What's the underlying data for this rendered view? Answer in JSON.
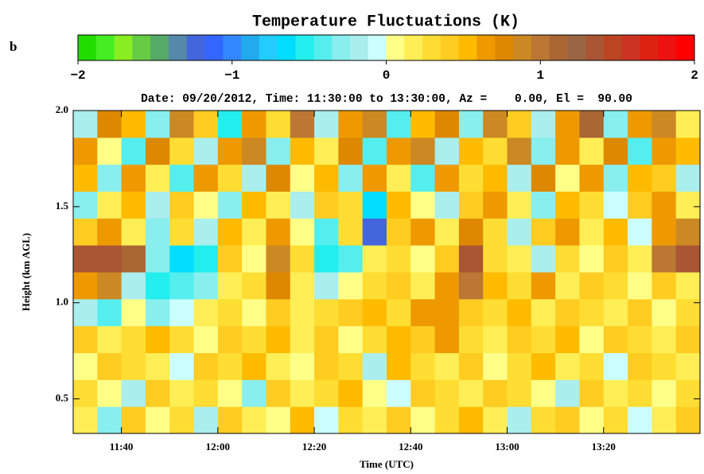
{
  "chart_data": {
    "type": "heatmap",
    "panel_label": "b",
    "title": "Temperature Fluctuations (K)",
    "subtitle": "Date: 09/20/2012, Time: 11:30:00 to 13:30:00, Az =    0.00, El =  90.00",
    "x_label": "Time (UTC)",
    "y_label": "Height (km AGL)",
    "xlim": [
      690,
      820
    ],
    "xticks": [
      {
        "value": 700,
        "label": "11:40"
      },
      {
        "value": 720,
        "label": "12:00"
      },
      {
        "value": 740,
        "label": "12:20"
      },
      {
        "value": 760,
        "label": "12:40"
      },
      {
        "value": 780,
        "label": "13:00"
      },
      {
        "value": 800,
        "label": "13:20"
      }
    ],
    "ylim": [
      0.32,
      2.0
    ],
    "yticks": [
      0.5,
      {
        "value": 1,
        "label": "1.0"
      },
      1.5,
      {
        "value": 2,
        "label": "2.0"
      }
    ],
    "zlim": [
      -2,
      2
    ],
    "zticks": [
      {
        "value": -2,
        "label": "−2"
      },
      {
        "value": -1,
        "label": "−1"
      },
      0,
      1,
      2
    ],
    "colorscale": [
      "#22dd00",
      "#44ee22",
      "#88ee22",
      "#66cc44",
      "#55aa66",
      "#5588aa",
      "#4466dd",
      "#3366ff",
      "#3388ff",
      "#22aaee",
      "#22ccff",
      "#00ddff",
      "#22eeee",
      "#55eeee",
      "#88eeee",
      "#aaeeee",
      "#ccffff",
      "#ffff88",
      "#ffee55",
      "#ffdd33",
      "#ffcc22",
      "#ffbb00",
      "#ee9900",
      "#dd8800",
      "#cc8822",
      "#bb7733",
      "#aa6633",
      "#996644",
      "#aa5533",
      "#bb4422",
      "#cc3322",
      "#dd2211",
      "#ee1111",
      "#ff0000"
    ],
    "xbins": [
      690,
      695,
      700,
      705,
      710,
      715,
      720,
      725,
      730,
      735,
      740,
      745,
      750,
      755,
      760,
      765,
      770,
      775,
      780,
      785,
      790,
      795,
      800,
      805,
      810,
      815,
      820
    ],
    "ybins": [
      0.32,
      0.46,
      0.6,
      0.74,
      0.88,
      1.02,
      1.16,
      1.3,
      1.44,
      1.58,
      1.72,
      1.86,
      2.0
    ],
    "z": [
      [
        0.2,
        -0.3,
        0.4,
        0.1,
        0.3,
        -0.2,
        0.4,
        0.2,
        0.1,
        0.5,
        -0.1,
        0.3,
        0.2,
        0.4,
        0.1,
        0.3,
        0.5,
        0.2,
        -0.2,
        0.3,
        0.4,
        0.1,
        0.3,
        -0.1,
        0.2,
        0.4
      ],
      [
        0.3,
        0.1,
        -0.2,
        0.4,
        0.2,
        0.3,
        0.1,
        -0.3,
        0.4,
        0.2,
        0.3,
        0.5,
        0.1,
        -0.1,
        0.4,
        0.3,
        0.2,
        0.4,
        0.3,
        0.1,
        -0.2,
        0.4,
        0.2,
        0.3,
        0.1,
        0.3
      ],
      [
        0.1,
        0.4,
        0.3,
        0.2,
        -0.1,
        0.4,
        0.3,
        0.5,
        0.2,
        0.1,
        0.4,
        0.3,
        -0.2,
        0.5,
        0.3,
        0.2,
        0.4,
        0.1,
        0.3,
        0.5,
        0.2,
        0.3,
        -0.1,
        0.4,
        0.3,
        0.2
      ],
      [
        0.4,
        0.2,
        0.3,
        0.5,
        0.3,
        0.1,
        0.4,
        0.3,
        0.5,
        0.2,
        0.4,
        0.1,
        0.3,
        0.5,
        0.4,
        0.6,
        0.3,
        0.2,
        0.4,
        0.3,
        0.5,
        0.1,
        0.4,
        0.3,
        0.2,
        0.4
      ],
      [
        -0.2,
        -0.4,
        0.1,
        -0.3,
        -0.1,
        0.2,
        0.3,
        0.1,
        0.4,
        0.2,
        0.3,
        0.4,
        0.5,
        0.3,
        0.6,
        0.7,
        0.4,
        0.3,
        0.5,
        0.2,
        0.4,
        0.3,
        0.2,
        0.4,
        0.1,
        0.3
      ],
      [
        0.6,
        0.9,
        -0.2,
        -0.5,
        -0.4,
        -0.3,
        0.2,
        0.3,
        0.8,
        0.2,
        -0.2,
        0.1,
        0.3,
        0.4,
        0.2,
        0.6,
        1.0,
        0.5,
        0.3,
        0.6,
        0.2,
        0.4,
        0.3,
        0.1,
        0.4,
        0.2
      ],
      [
        1.3,
        1.4,
        1.1,
        -0.3,
        -0.6,
        -0.5,
        0.4,
        0.1,
        0.9,
        0.3,
        -0.5,
        -0.4,
        0.2,
        0.3,
        0.1,
        0.4,
        1.3,
        0.3,
        0.2,
        -0.2,
        0.3,
        0.1,
        0.4,
        0.2,
        1.0,
        1.4
      ],
      [
        0.4,
        0.6,
        0.2,
        -0.3,
        0.3,
        -0.2,
        0.5,
        0.2,
        0.7,
        0.1,
        -0.4,
        0.3,
        -1.2,
        0.4,
        0.6,
        0.2,
        0.8,
        0.3,
        -0.2,
        0.4,
        0.6,
        0.2,
        0.5,
        -0.1,
        0.7,
        0.9
      ],
      [
        -0.3,
        0.2,
        0.5,
        -0.2,
        0.4,
        0.1,
        -0.3,
        0.5,
        0.2,
        -0.2,
        0.4,
        0.3,
        -0.6,
        0.5,
        0.1,
        -0.2,
        0.4,
        0.6,
        0.2,
        -0.3,
        0.5,
        0.3,
        -0.1,
        0.4,
        0.6,
        0.2
      ],
      [
        0.5,
        -0.3,
        0.7,
        0.2,
        -0.4,
        0.6,
        0.3,
        -0.2,
        0.8,
        0.1,
        0.5,
        -0.3,
        0.6,
        0.2,
        -0.4,
        0.7,
        0.3,
        0.5,
        -0.2,
        0.8,
        0.1,
        0.6,
        -0.3,
        0.5,
        0.4,
        -0.2
      ],
      [
        0.7,
        0.1,
        -0.4,
        0.8,
        0.3,
        -0.2,
        0.6,
        0.9,
        -0.3,
        0.5,
        0.2,
        0.8,
        -0.4,
        0.6,
        0.9,
        -0.2,
        0.5,
        0.3,
        0.9,
        -0.3,
        0.7,
        0.2,
        0.8,
        -0.4,
        0.6,
        0.5
      ],
      [
        -0.2,
        0.8,
        0.5,
        -0.3,
        0.9,
        0.4,
        -0.5,
        0.7,
        0.3,
        1.0,
        -0.2,
        0.6,
        0.9,
        -0.4,
        0.5,
        0.8,
        -0.3,
        0.9,
        0.4,
        -0.2,
        0.7,
        1.1,
        -0.3,
        0.6,
        0.9,
        0.2
      ]
    ]
  }
}
